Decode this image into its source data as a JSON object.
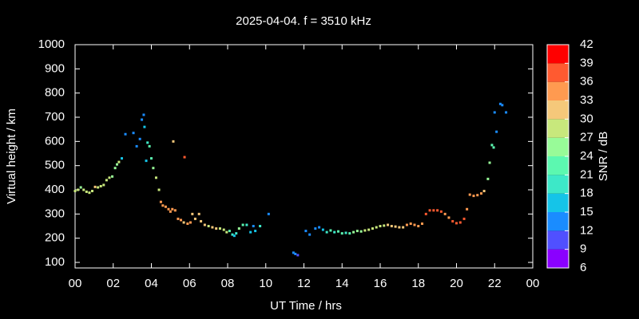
{
  "chart_data": {
    "type": "scatter",
    "title": "2025-04-04. f = 3510 kHz",
    "x_label": "UT Time / hrs",
    "y_label": "Virtual height / km",
    "xlim": [
      0,
      24
    ],
    "xticks": [
      {
        "value": 0,
        "label": "00"
      },
      {
        "value": 2,
        "label": "02"
      },
      {
        "value": 4,
        "label": "04"
      },
      {
        "value": 6,
        "label": "06"
      },
      {
        "value": 8,
        "label": "08"
      },
      {
        "value": 10,
        "label": "10"
      },
      12,
      14,
      16,
      18,
      20,
      22,
      {
        "value": 24,
        "label": "00"
      }
    ],
    "ylim": [
      77,
      1000
    ],
    "yticks": [
      100,
      200,
      300,
      400,
      500,
      600,
      700,
      800,
      900,
      1000
    ],
    "colorbar": {
      "label": "SNR / dB",
      "ticks": [
        6,
        9,
        12,
        15,
        18,
        21,
        24,
        27,
        30,
        33,
        36,
        39,
        42
      ],
      "colors": [
        "#8a00ff",
        "#5050ff",
        "#1a8cff",
        "#15c4e8",
        "#3de8c8",
        "#5cf8b0",
        "#98fb98",
        "#c8e87c",
        "#f5c87a",
        "#ff9a50",
        "#ff5a30",
        "#ff0000"
      ]
    },
    "x": [
      0.0,
      0.15,
      0.3,
      0.45,
      0.6,
      0.75,
      0.9,
      1.05,
      1.2,
      1.35,
      1.5,
      1.65,
      1.8,
      1.95,
      2.1,
      2.2,
      2.3,
      2.45,
      2.64,
      3.06,
      3.23,
      3.4,
      3.5,
      3.6,
      3.64,
      3.73,
      3.8,
      3.9,
      4.0,
      4.1,
      4.25,
      4.4,
      4.5,
      4.6,
      4.75,
      4.9,
      5.0,
      5.1,
      5.15,
      5.25,
      5.4,
      5.55,
      5.7,
      5.74,
      5.9,
      6.05,
      6.15,
      6.3,
      6.5,
      6.6,
      6.8,
      7.0,
      7.2,
      7.4,
      7.6,
      7.8,
      7.95,
      8.1,
      8.25,
      8.35,
      8.45,
      8.6,
      8.8,
      9.0,
      9.2,
      9.35,
      9.45,
      9.7,
      10.15,
      11.45,
      11.55,
      11.68,
      12.1,
      12.3,
      12.6,
      12.8,
      13.0,
      13.2,
      13.4,
      13.6,
      13.8,
      14.0,
      14.2,
      14.4,
      14.6,
      14.8,
      15.0,
      15.2,
      15.4,
      15.6,
      15.8,
      16.0,
      16.2,
      16.4,
      16.6,
      16.8,
      17.0,
      17.2,
      17.4,
      17.6,
      17.8,
      18.0,
      18.2,
      18.4,
      18.6,
      18.8,
      19.0,
      19.2,
      19.4,
      19.6,
      19.8,
      20.0,
      20.2,
      20.4,
      20.55,
      20.7,
      20.9,
      21.1,
      21.3,
      21.45,
      21.65,
      21.74,
      21.86,
      21.95,
      22.0,
      22.1,
      22.3,
      22.4,
      22.6
    ],
    "y": [
      395,
      400,
      410,
      400,
      392,
      388,
      395,
      412,
      410,
      415,
      420,
      440,
      450,
      455,
      490,
      505,
      515,
      530,
      630,
      635,
      580,
      610,
      690,
      710,
      660,
      520,
      595,
      580,
      530,
      490,
      450,
      400,
      350,
      335,
      330,
      320,
      310,
      320,
      600,
      315,
      280,
      275,
      265,
      535,
      260,
      265,
      300,
      280,
      300,
      270,
      255,
      250,
      245,
      240,
      240,
      235,
      225,
      230,
      215,
      210,
      220,
      240,
      255,
      255,
      225,
      250,
      230,
      250,
      300,
      140,
      135,
      130,
      230,
      215,
      240,
      245,
      235,
      225,
      232,
      225,
      228,
      220,
      222,
      220,
      225,
      230,
      228,
      232,
      235,
      240,
      245,
      250,
      252,
      255,
      250,
      248,
      245,
      245,
      255,
      260,
      255,
      250,
      260,
      300,
      315,
      315,
      315,
      310,
      300,
      285,
      270,
      262,
      265,
      280,
      320,
      380,
      375,
      378,
      385,
      395,
      445,
      512,
      585,
      575,
      720,
      640,
      755,
      750,
      720
    ],
    "snr": [
      27,
      27,
      24,
      27,
      27,
      27,
      27,
      30,
      27,
      27,
      27,
      27,
      27,
      24,
      24,
      24,
      27,
      15,
      12,
      12,
      12,
      12,
      12,
      12,
      15,
      15,
      18,
      21,
      21,
      24,
      27,
      27,
      33,
      33,
      33,
      33,
      33,
      33,
      30,
      33,
      33,
      33,
      30,
      36,
      33,
      33,
      30,
      30,
      30,
      30,
      30,
      27,
      30,
      30,
      27,
      27,
      27,
      21,
      18,
      15,
      18,
      24,
      21,
      18,
      15,
      12,
      15,
      18,
      12,
      12,
      12,
      9,
      12,
      12,
      12,
      12,
      15,
      18,
      21,
      18,
      21,
      21,
      18,
      21,
      24,
      24,
      24,
      27,
      27,
      27,
      27,
      27,
      27,
      30,
      30,
      30,
      30,
      30,
      33,
      33,
      33,
      33,
      33,
      36,
      36,
      36,
      36,
      36,
      33,
      33,
      36,
      36,
      36,
      36,
      33,
      33,
      33,
      33,
      33,
      30,
      24,
      24,
      21,
      21,
      12,
      12,
      12,
      12,
      12
    ]
  }
}
